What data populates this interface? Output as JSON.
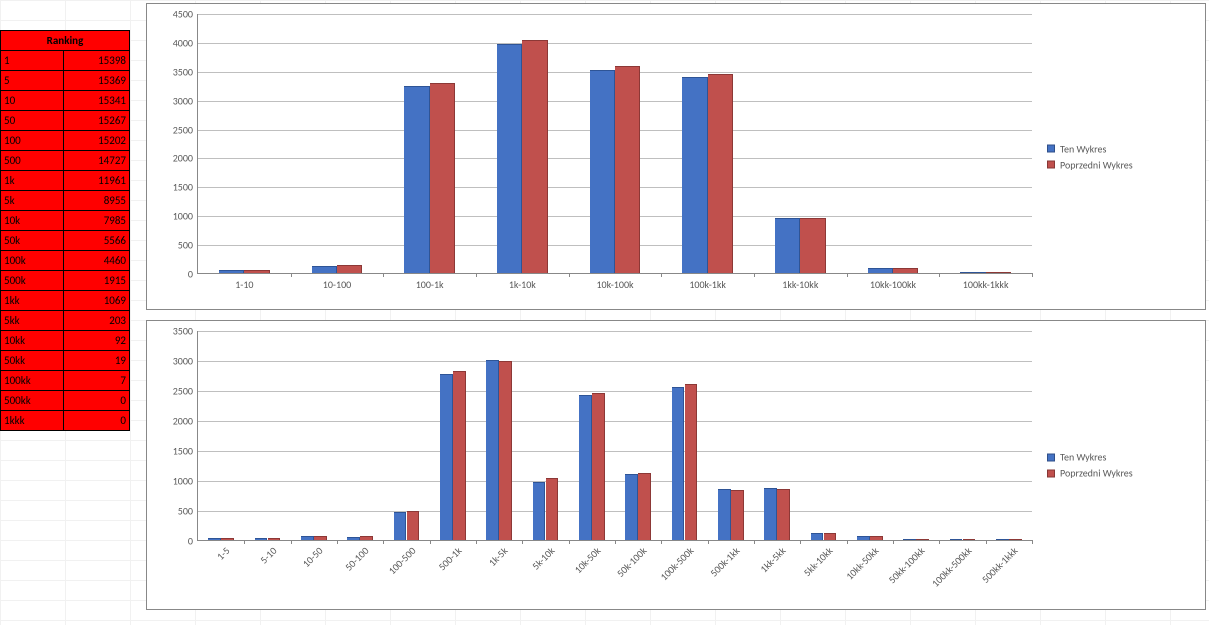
{
  "ranking_table": {
    "header": "Ranking",
    "rows": [
      [
        "1",
        "15398"
      ],
      [
        "5",
        "15369"
      ],
      [
        "10",
        "15341"
      ],
      [
        "50",
        "15267"
      ],
      [
        "100",
        "15202"
      ],
      [
        "500",
        "14727"
      ],
      [
        "1k",
        "11961"
      ],
      [
        "5k",
        "8955"
      ],
      [
        "10k",
        "7985"
      ],
      [
        "50k",
        "5566"
      ],
      [
        "100k",
        "4460"
      ],
      [
        "500k",
        "1915"
      ],
      [
        "1kk",
        "1069"
      ],
      [
        "5kk",
        "203"
      ],
      [
        "10kk",
        "92"
      ],
      [
        "50kk",
        "19"
      ],
      [
        "100kk",
        "7"
      ],
      [
        "500kk",
        "0"
      ],
      [
        "1kkk",
        "0"
      ]
    ],
    "bg_color": "#ff0000",
    "border_color": "#000000",
    "text_color": "#000000",
    "fontsize": 11
  },
  "legend": {
    "series1_label": "Ten Wykres",
    "series2_label": "Poprzedni Wykres",
    "series1_color": "#4472c4",
    "series2_color": "#c0504d",
    "fontsize": 10
  },
  "chart_top": {
    "type": "bar",
    "categories": [
      "1-10",
      "10-100",
      "100-1k",
      "1k-10k",
      "10k-100k",
      "100k-1kk",
      "1kk-10kk",
      "10kk-100kk",
      "100kk-1kkk"
    ],
    "series1": [
      55,
      130,
      3230,
      3970,
      3520,
      3400,
      960,
      85,
      7
    ],
    "series2": [
      60,
      135,
      3290,
      4030,
      3580,
      3440,
      960,
      90,
      7
    ],
    "ylim": [
      0,
      4500
    ],
    "ytick_step": 500,
    "grid_color": "#bfbfbf",
    "axis_color": "#888888",
    "background_color": "#ffffff",
    "label_fontsize": 10,
    "bar_group_width": 0.55
  },
  "chart_bottom": {
    "type": "bar",
    "categories": [
      "1-5",
      "5-10",
      "10-50",
      "50-100",
      "100-500",
      "500-1k",
      "1k-5k",
      "5k-10k",
      "10k-50k",
      "50k-100k",
      "100k-500k",
      "500k-1kk",
      "1kk-5kk",
      "5kk-10kk",
      "10kk-50kk",
      "50kk-100kk",
      "100kk-500kk",
      "500kk-1kkk"
    ],
    "series1": [
      28,
      28,
      65,
      55,
      475,
      2760,
      3000,
      970,
      2420,
      1100,
      2550,
      845,
      870,
      110,
      70,
      10,
      5,
      0
    ],
    "series2": [
      30,
      30,
      70,
      60,
      490,
      2820,
      2980,
      1030,
      2450,
      1120,
      2600,
      830,
      850,
      115,
      75,
      10,
      5,
      0
    ],
    "ylim": [
      0,
      3500
    ],
    "ytick_step": 500,
    "grid_color": "#bfbfbf",
    "axis_color": "#888888",
    "background_color": "#ffffff",
    "label_fontsize": 10,
    "bar_group_width": 0.55,
    "x_label_rotation": -45
  },
  "colors": {
    "series1": "#4472c4",
    "series2": "#c0504d",
    "series1_border": "#2e5496",
    "series2_border": "#8c3836"
  }
}
